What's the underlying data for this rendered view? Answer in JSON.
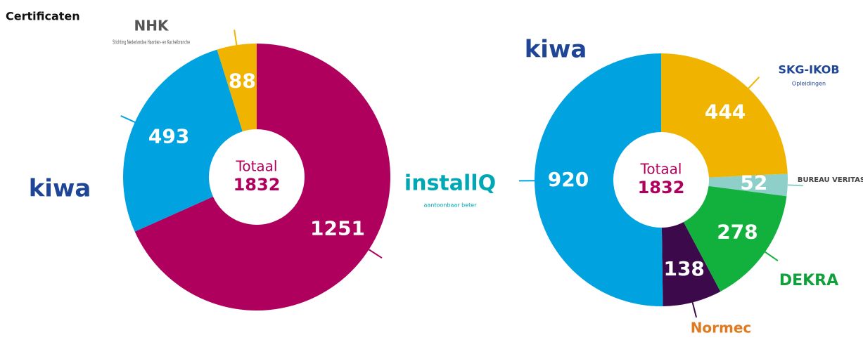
{
  "title": "Certificaten",
  "chart_data": [
    {
      "type": "donut",
      "center_label": "Totaal",
      "center_value": 1832,
      "series": [
        {
          "name": "installQ",
          "sublabel": "aantoonbaar beter",
          "color": "#b0005e",
          "value": 1251
        },
        {
          "name": "kiwa",
          "color": "#00a3e0",
          "value": 493
        },
        {
          "name": "NHK",
          "sublabel": "Stichting Nederlandse Haarden- en Kachelbranche",
          "color": "#f0b400",
          "value": 88
        }
      ]
    },
    {
      "type": "donut",
      "center_label": "Totaal",
      "center_value": 1832,
      "series": [
        {
          "name": "SKG-IKOB",
          "sublabel": "Opleidingen",
          "color": "#f0b400",
          "value": 444
        },
        {
          "name": "BUREAU VERITAS",
          "color": "#8ecfc9",
          "value": 52
        },
        {
          "name": "DEKRA",
          "color": "#12b03c",
          "value": 278
        },
        {
          "name": "Normec",
          "color": "#3c0a4a",
          "value": 138
        },
        {
          "name": "kiwa",
          "color": "#00a3e0",
          "value": 920
        }
      ]
    }
  ]
}
